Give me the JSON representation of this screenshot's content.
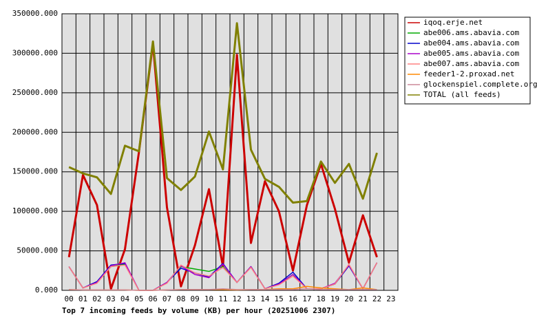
{
  "chart_data": {
    "type": "line",
    "title": "Top 7 incoming feeds by volume (KB) per hour (20251006 2307)",
    "categories": [
      "00",
      "01",
      "02",
      "03",
      "04",
      "05",
      "06",
      "07",
      "08",
      "09",
      "10",
      "11",
      "12",
      "13",
      "14",
      "15",
      "16",
      "17",
      "18",
      "19",
      "20",
      "21",
      "22",
      "23"
    ],
    "ylim": [
      0,
      350000
    ],
    "yticks": [
      {
        "value": 0,
        "label": "0.000"
      },
      {
        "value": 50000,
        "label": "50000.000"
      },
      {
        "value": 100000,
        "label": "100000.000"
      },
      {
        "value": 150000,
        "label": "150000.000"
      },
      {
        "value": 200000,
        "label": "200000.000"
      },
      {
        "value": 250000,
        "label": "250000.000"
      },
      {
        "value": 300000,
        "label": "300000.000"
      },
      {
        "value": 350000,
        "label": "350000.000"
      }
    ],
    "grid": true,
    "legend": "right",
    "series": [
      {
        "name": "iqoq.erje.net",
        "color": "#cc0000",
        "values": [
          42000,
          146000,
          108000,
          2000,
          52000,
          175000,
          312000,
          105000,
          5000,
          57000,
          128000,
          30000,
          298000,
          60000,
          138000,
          100000,
          25000,
          108000,
          160000,
          103000,
          35000,
          95000,
          42000,
          null
        ]
      },
      {
        "name": "abe006.ams.abavia.com",
        "color": "#00aa00",
        "values": [
          30000,
          3000,
          10000,
          30000,
          33000,
          0,
          0,
          10000,
          30000,
          27000,
          24000,
          30000,
          10000,
          30000,
          2000,
          8000,
          20000,
          2000,
          2000,
          8000,
          32000,
          2000,
          35000,
          null
        ]
      },
      {
        "name": "abe004.ams.abavia.com",
        "color": "#0000cc",
        "values": [
          30000,
          3000,
          11000,
          32000,
          34000,
          0,
          0,
          10000,
          28000,
          22000,
          17000,
          34000,
          10000,
          30000,
          2000,
          9000,
          23000,
          2000,
          2000,
          8000,
          31000,
          2000,
          35000,
          null
        ]
      },
      {
        "name": "abe005.ams.abavia.com",
        "color": "#aa00cc",
        "values": [
          30000,
          3000,
          10000,
          31000,
          35000,
          0,
          0,
          10000,
          31000,
          20000,
          16000,
          33000,
          10000,
          30000,
          2000,
          8000,
          20000,
          2000,
          2000,
          9000,
          32000,
          2000,
          35000,
          null
        ]
      },
      {
        "name": "abe007.ams.abavia.com",
        "color": "#ff8080",
        "values": [
          30000,
          3000,
          9000,
          30000,
          32000,
          0,
          0,
          9000,
          32000,
          22000,
          18000,
          29000,
          10000,
          29000,
          2000,
          7000,
          18000,
          2000,
          2000,
          8000,
          33000,
          2000,
          35000,
          null
        ]
      },
      {
        "name": "feeder1-2.proxad.net",
        "color": "#ff8800",
        "values": [
          1000,
          500,
          500,
          500,
          500,
          0,
          0,
          500,
          1000,
          1000,
          1000,
          1000,
          500,
          1000,
          1000,
          2000,
          2000,
          5000,
          3000,
          2000,
          1000,
          3000,
          1000,
          null
        ]
      },
      {
        "name": "glockenspiel.complete.org",
        "color": "#cc8899",
        "values": [
          1000,
          500,
          500,
          500,
          500,
          0,
          0,
          500,
          1000,
          1000,
          1000,
          2000,
          1000,
          1000,
          1000,
          1000,
          1000,
          2000,
          1000,
          1000,
          1000,
          1000,
          1000,
          null
        ]
      },
      {
        "name": "TOTAL (all feeds)",
        "color": "#808000",
        "values": [
          156000,
          148000,
          143000,
          122000,
          183000,
          176000,
          315000,
          142000,
          127000,
          144000,
          201000,
          153000,
          338000,
          178000,
          141000,
          131000,
          111000,
          113000,
          163000,
          136000,
          160000,
          116000,
          174000,
          null
        ]
      }
    ]
  }
}
